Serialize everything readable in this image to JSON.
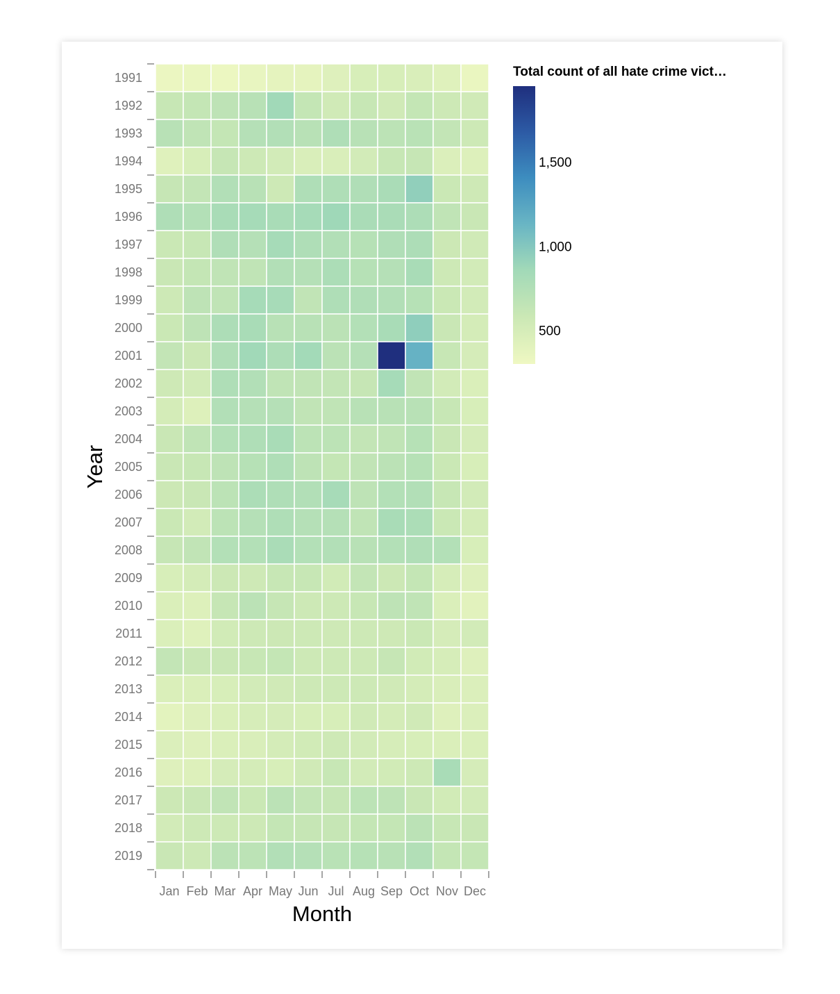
{
  "chart_data": {
    "type": "heatmap",
    "title": "",
    "xlabel": "Month",
    "ylabel": "Year",
    "legend_title": "Total count of all hate crime vict…",
    "legend_position": "right",
    "color_scale": {
      "domain": [
        300,
        1950
      ],
      "colors": [
        "#eff8c2",
        "#cbe8b5",
        "#a1d9b8",
        "#6ab6c4",
        "#3d8dbf",
        "#2d5ca6",
        "#1f2f7e"
      ]
    },
    "legend_ticks": [
      {
        "value": 500,
        "label": "500"
      },
      {
        "value": 1000,
        "label": "1,000"
      },
      {
        "value": 1500,
        "label": "1,500"
      }
    ],
    "x_categories": [
      "Jan",
      "Feb",
      "Mar",
      "Apr",
      "May",
      "Jun",
      "Jul",
      "Aug",
      "Sep",
      "Oct",
      "Nov",
      "Dec"
    ],
    "y_categories": [
      "1991",
      "1992",
      "1993",
      "1994",
      "1995",
      "1996",
      "1997",
      "1998",
      "1999",
      "2000",
      "2001",
      "2002",
      "2003",
      "2004",
      "2005",
      "2006",
      "2007",
      "2008",
      "2009",
      "2010",
      "2011",
      "2012",
      "2013",
      "2014",
      "2015",
      "2016",
      "2017",
      "2018",
      "2019"
    ],
    "values": [
      [
        330,
        340,
        320,
        350,
        380,
        380,
        430,
        480,
        480,
        470,
        420,
        340
      ],
      [
        600,
        620,
        660,
        700,
        850,
        620,
        540,
        600,
        540,
        620,
        560,
        540
      ],
      [
        700,
        650,
        620,
        720,
        740,
        700,
        760,
        700,
        670,
        690,
        630,
        560
      ],
      [
        420,
        480,
        610,
        560,
        520,
        470,
        470,
        520,
        600,
        610,
        450,
        440
      ],
      [
        610,
        630,
        740,
        700,
        560,
        760,
        760,
        750,
        790,
        930,
        580,
        550
      ],
      [
        760,
        730,
        800,
        820,
        800,
        820,
        860,
        790,
        790,
        770,
        650,
        590
      ],
      [
        580,
        600,
        750,
        720,
        820,
        760,
        740,
        710,
        750,
        770,
        570,
        540
      ],
      [
        590,
        620,
        650,
        650,
        740,
        720,
        780,
        710,
        720,
        800,
        560,
        520
      ],
      [
        560,
        660,
        650,
        820,
        810,
        640,
        760,
        750,
        740,
        710,
        580,
        520
      ],
      [
        580,
        660,
        770,
        800,
        700,
        700,
        680,
        730,
        800,
        940,
        590,
        510
      ],
      [
        630,
        570,
        750,
        850,
        770,
        840,
        680,
        720,
        1950,
        1150,
        600,
        500
      ],
      [
        550,
        520,
        760,
        740,
        650,
        640,
        630,
        610,
        820,
        640,
        520,
        460
      ],
      [
        510,
        440,
        740,
        720,
        720,
        640,
        650,
        700,
        700,
        700,
        600,
        480
      ],
      [
        590,
        650,
        730,
        760,
        800,
        670,
        670,
        630,
        650,
        710,
        590,
        500
      ],
      [
        590,
        600,
        660,
        710,
        760,
        660,
        620,
        640,
        680,
        710,
        580,
        480
      ],
      [
        570,
        590,
        670,
        780,
        760,
        740,
        810,
        660,
        730,
        740,
        600,
        520
      ],
      [
        580,
        520,
        670,
        720,
        760,
        720,
        720,
        650,
        800,
        780,
        580,
        510
      ],
      [
        610,
        640,
        730,
        730,
        790,
        730,
        740,
        700,
        730,
        750,
        730,
        480
      ],
      [
        480,
        510,
        570,
        550,
        600,
        600,
        530,
        630,
        570,
        620,
        490,
        430
      ],
      [
        460,
        440,
        610,
        680,
        610,
        560,
        560,
        600,
        660,
        650,
        460,
        400
      ],
      [
        460,
        420,
        530,
        560,
        570,
        560,
        550,
        560,
        550,
        580,
        500,
        520
      ],
      [
        630,
        590,
        590,
        600,
        620,
        560,
        560,
        560,
        610,
        530,
        490,
        430
      ],
      [
        460,
        460,
        480,
        520,
        540,
        560,
        560,
        560,
        540,
        510,
        470,
        450
      ],
      [
        390,
        430,
        460,
        490,
        500,
        480,
        480,
        540,
        510,
        540,
        430,
        450
      ],
      [
        450,
        430,
        460,
        470,
        510,
        530,
        550,
        520,
        490,
        480,
        460,
        460
      ],
      [
        430,
        440,
        500,
        510,
        480,
        540,
        600,
        520,
        530,
        560,
        800,
        500
      ],
      [
        570,
        590,
        640,
        580,
        680,
        630,
        610,
        670,
        660,
        590,
        530,
        520
      ],
      [
        520,
        560,
        560,
        560,
        620,
        610,
        610,
        620,
        620,
        680,
        600,
        590
      ],
      [
        590,
        560,
        680,
        670,
        740,
        720,
        690,
        710,
        700,
        740,
        620,
        620
      ]
    ]
  }
}
